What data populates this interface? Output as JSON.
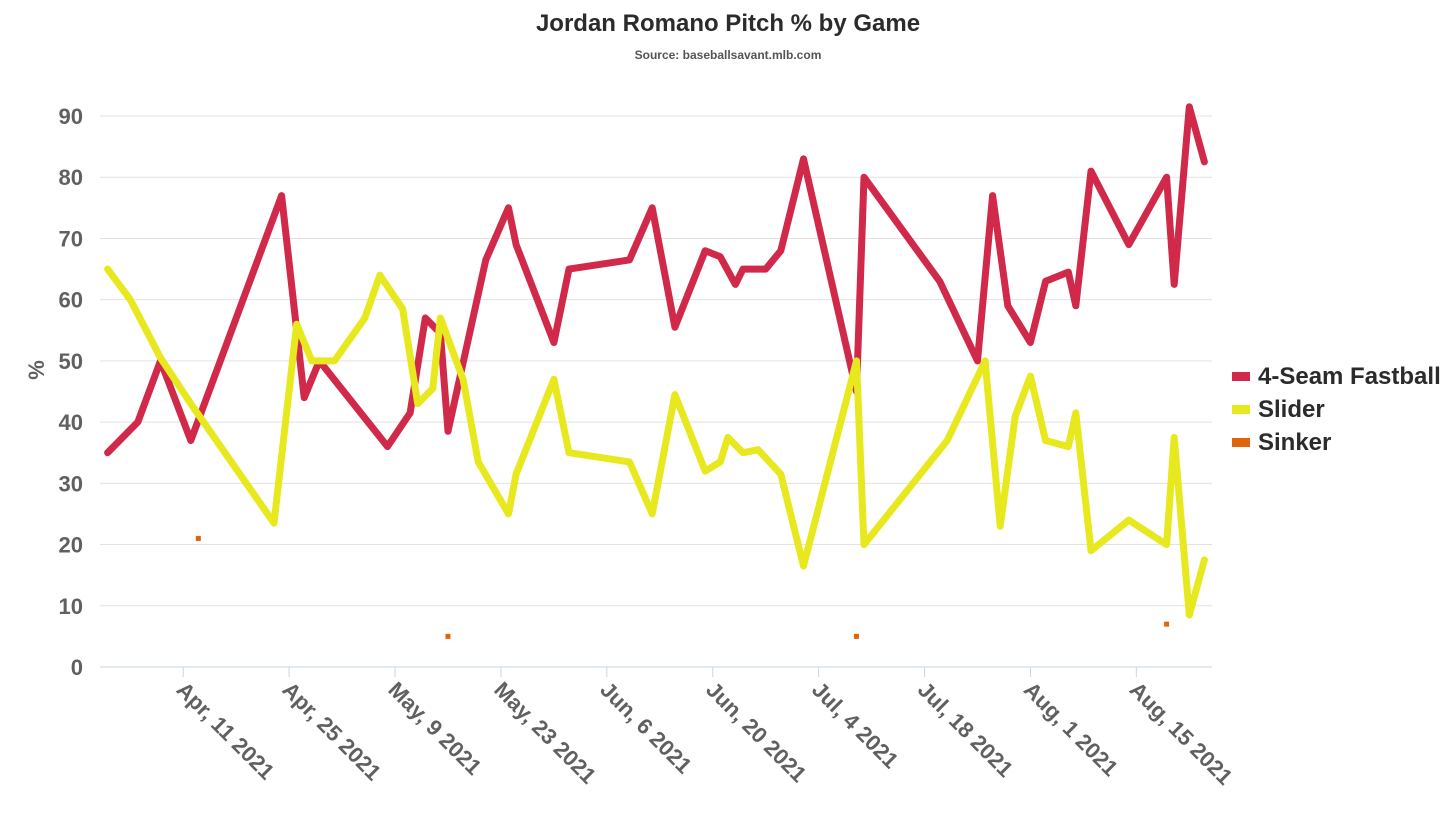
{
  "chart_data": {
    "type": "line",
    "title": "Jordan Romano Pitch % by Game",
    "subtitle": "Source: baseballsavant.mlb.com",
    "ylabel": "%",
    "xlabel": "",
    "ylim": [
      0,
      90
    ],
    "yticks": [
      0,
      10,
      20,
      30,
      40,
      50,
      60,
      70,
      80,
      90
    ],
    "xlim": [
      "2021-03-31",
      "2021-08-25"
    ],
    "xticks": [
      {
        "date": "2021-04-11",
        "label": "Apr, 11 2021"
      },
      {
        "date": "2021-04-25",
        "label": "Apr, 25 2021"
      },
      {
        "date": "2021-05-09",
        "label": "May, 9 2021"
      },
      {
        "date": "2021-05-23",
        "label": "May, 23 2021"
      },
      {
        "date": "2021-06-06",
        "label": "Jun, 6 2021"
      },
      {
        "date": "2021-06-20",
        "label": "Jun, 20 2021"
      },
      {
        "date": "2021-07-04",
        "label": "Jul, 4 2021"
      },
      {
        "date": "2021-07-18",
        "label": "Jul, 18 2021"
      },
      {
        "date": "2021-08-01",
        "label": "Aug, 1 2021"
      },
      {
        "date": "2021-08-15",
        "label": "Aug, 15 2021"
      }
    ],
    "grid": true,
    "legend": "right",
    "series": [
      {
        "name": "4-Seam Fastball",
        "color": "#d0294a",
        "style": "line",
        "points": [
          [
            "2021-04-01",
            35
          ],
          [
            "2021-04-05",
            40
          ],
          [
            "2021-04-08",
            50
          ],
          [
            "2021-04-12",
            37
          ],
          [
            "2021-04-24",
            77
          ],
          [
            "2021-04-27",
            44
          ],
          [
            "2021-04-29",
            50
          ],
          [
            "2021-05-08",
            36
          ],
          [
            "2021-05-11",
            41.5
          ],
          [
            "2021-05-13",
            57
          ],
          [
            "2021-05-15",
            54.5
          ],
          [
            "2021-05-16",
            38.5
          ],
          [
            "2021-05-21",
            66.5
          ],
          [
            "2021-05-24",
            75
          ],
          [
            "2021-05-25",
            69
          ],
          [
            "2021-05-30",
            53
          ],
          [
            "2021-06-01",
            65
          ],
          [
            "2021-06-09",
            66.5
          ],
          [
            "2021-06-12",
            75
          ],
          [
            "2021-06-15",
            55.5
          ],
          [
            "2021-06-19",
            68
          ],
          [
            "2021-06-21",
            67
          ],
          [
            "2021-06-23",
            62.5
          ],
          [
            "2021-06-24",
            65
          ],
          [
            "2021-06-27",
            65
          ],
          [
            "2021-06-29",
            68
          ],
          [
            "2021-07-02",
            83
          ],
          [
            "2021-07-09",
            45
          ],
          [
            "2021-07-10",
            80
          ],
          [
            "2021-07-20",
            63
          ],
          [
            "2021-07-25",
            50
          ],
          [
            "2021-07-27",
            77
          ],
          [
            "2021-07-29",
            59
          ],
          [
            "2021-08-01",
            53
          ],
          [
            "2021-08-03",
            63
          ],
          [
            "2021-08-06",
            64.5
          ],
          [
            "2021-08-07",
            59
          ],
          [
            "2021-08-09",
            81
          ],
          [
            "2021-08-14",
            69
          ],
          [
            "2021-08-19",
            80
          ],
          [
            "2021-08-20",
            62.5
          ],
          [
            "2021-08-22",
            91.5
          ],
          [
            "2021-08-24",
            82.5
          ]
        ]
      },
      {
        "name": "Slider",
        "color": "#e8e81e",
        "style": "line",
        "points": [
          [
            "2021-04-01",
            65
          ],
          [
            "2021-04-04",
            60
          ],
          [
            "2021-04-08",
            50.5
          ],
          [
            "2021-04-12",
            43
          ],
          [
            "2021-04-23",
            23.5
          ],
          [
            "2021-04-26",
            56
          ],
          [
            "2021-04-28",
            50
          ],
          [
            "2021-05-01",
            50
          ],
          [
            "2021-05-05",
            57
          ],
          [
            "2021-05-07",
            64
          ],
          [
            "2021-05-10",
            58.5
          ],
          [
            "2021-05-12",
            43
          ],
          [
            "2021-05-14",
            45.5
          ],
          [
            "2021-05-15",
            57
          ],
          [
            "2021-05-18",
            47
          ],
          [
            "2021-05-20",
            33.5
          ],
          [
            "2021-05-24",
            25
          ],
          [
            "2021-05-25",
            31.5
          ],
          [
            "2021-05-30",
            47
          ],
          [
            "2021-06-01",
            35
          ],
          [
            "2021-06-09",
            33.5
          ],
          [
            "2021-06-12",
            25
          ],
          [
            "2021-06-15",
            44.5
          ],
          [
            "2021-06-19",
            32
          ],
          [
            "2021-06-21",
            33.5
          ],
          [
            "2021-06-22",
            37.5
          ],
          [
            "2021-06-24",
            35
          ],
          [
            "2021-06-26",
            35.5
          ],
          [
            "2021-06-29",
            31.5
          ],
          [
            "2021-07-02",
            16.5
          ],
          [
            "2021-07-09",
            50
          ],
          [
            "2021-07-10",
            20
          ],
          [
            "2021-07-21",
            37
          ],
          [
            "2021-07-26",
            50
          ],
          [
            "2021-07-28",
            23
          ],
          [
            "2021-07-30",
            41
          ],
          [
            "2021-08-01",
            47.5
          ],
          [
            "2021-08-03",
            37
          ],
          [
            "2021-08-06",
            36
          ],
          [
            "2021-08-07",
            41.5
          ],
          [
            "2021-08-09",
            19
          ],
          [
            "2021-08-14",
            24
          ],
          [
            "2021-08-19",
            20
          ],
          [
            "2021-08-20",
            37.5
          ],
          [
            "2021-08-22",
            8.5
          ],
          [
            "2021-08-24",
            17.5
          ]
        ]
      },
      {
        "name": "Sinker",
        "color": "#e0640a",
        "style": "points",
        "points": [
          [
            "2021-04-13",
            21
          ],
          [
            "2021-05-16",
            5
          ],
          [
            "2021-07-09",
            5
          ],
          [
            "2021-08-19",
            7
          ]
        ]
      }
    ]
  }
}
